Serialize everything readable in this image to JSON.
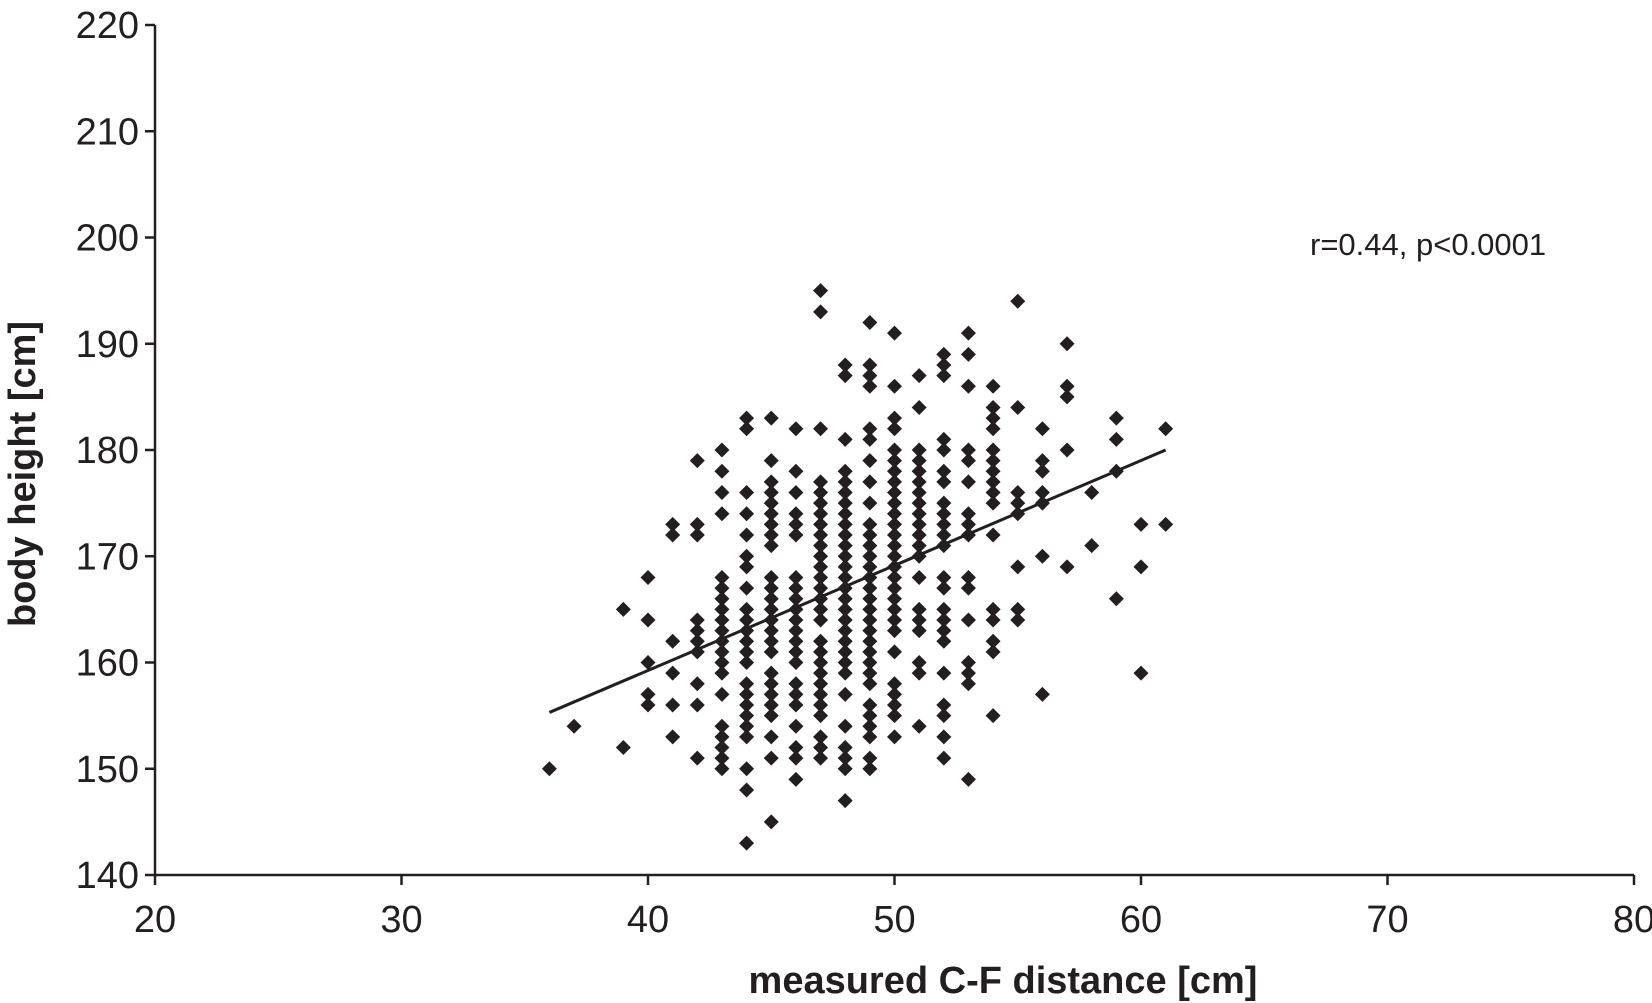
{
  "chart_data": {
    "type": "scatter",
    "xlabel": "measured C-F distance [cm]",
    "ylabel": "body height [cm]",
    "xlim": [
      20,
      80
    ],
    "ylim": [
      140,
      220
    ],
    "xticks": [
      "20",
      "30",
      "40",
      "50",
      "60",
      "70",
      "80"
    ],
    "yticks": [
      "140",
      "150",
      "160",
      "170",
      "180",
      "190",
      "200",
      "210",
      "220"
    ],
    "annotation": "r=0.44, p<0.0001",
    "grid": false,
    "marker": "diamond",
    "colors": {
      "axis": "#231f20",
      "marker": "#231f20",
      "line": "#231f20"
    },
    "regression_line": {
      "x": [
        36,
        61
      ],
      "y": [
        155.3,
        180.0
      ]
    },
    "points": [
      [
        36,
        150
      ],
      [
        37,
        154
      ],
      [
        39,
        152
      ],
      [
        39,
        165
      ],
      [
        40,
        168
      ],
      [
        40,
        164
      ],
      [
        40,
        160
      ],
      [
        40,
        157
      ],
      [
        40,
        156
      ],
      [
        41,
        173
      ],
      [
        41,
        172
      ],
      [
        41,
        162
      ],
      [
        41,
        159
      ],
      [
        41,
        156
      ],
      [
        41,
        153
      ],
      [
        42,
        179
      ],
      [
        42,
        173
      ],
      [
        42,
        172
      ],
      [
        42,
        164
      ],
      [
        42,
        163
      ],
      [
        42,
        162
      ],
      [
        42,
        161
      ],
      [
        42,
        158
      ],
      [
        42,
        156
      ],
      [
        42,
        151
      ],
      [
        43,
        180
      ],
      [
        43,
        178
      ],
      [
        43,
        176
      ],
      [
        43,
        174
      ],
      [
        43,
        168
      ],
      [
        43,
        167
      ],
      [
        43,
        166
      ],
      [
        43,
        165
      ],
      [
        43,
        164
      ],
      [
        43,
        163
      ],
      [
        43,
        162
      ],
      [
        43,
        161
      ],
      [
        43,
        160
      ],
      [
        43,
        159
      ],
      [
        43,
        157
      ],
      [
        43,
        154
      ],
      [
        43,
        153
      ],
      [
        43,
        152
      ],
      [
        43,
        151
      ],
      [
        43,
        150
      ],
      [
        44,
        183
      ],
      [
        44,
        182
      ],
      [
        44,
        176
      ],
      [
        44,
        174
      ],
      [
        44,
        172
      ],
      [
        44,
        170
      ],
      [
        44,
        169
      ],
      [
        44,
        167
      ],
      [
        44,
        165
      ],
      [
        44,
        164
      ],
      [
        44,
        163
      ],
      [
        44,
        162
      ],
      [
        44,
        161
      ],
      [
        44,
        160
      ],
      [
        44,
        158
      ],
      [
        44,
        157
      ],
      [
        44,
        156
      ],
      [
        44,
        155
      ],
      [
        44,
        154
      ],
      [
        44,
        153
      ],
      [
        44,
        150
      ],
      [
        44,
        148
      ],
      [
        44,
        143
      ],
      [
        45,
        183
      ],
      [
        45,
        179
      ],
      [
        45,
        177
      ],
      [
        45,
        176
      ],
      [
        45,
        175
      ],
      [
        45,
        174
      ],
      [
        45,
        173
      ],
      [
        45,
        172
      ],
      [
        45,
        171
      ],
      [
        45,
        168
      ],
      [
        45,
        167
      ],
      [
        45,
        166
      ],
      [
        45,
        165
      ],
      [
        45,
        164
      ],
      [
        45,
        163
      ],
      [
        45,
        162
      ],
      [
        45,
        161
      ],
      [
        45,
        159
      ],
      [
        45,
        158
      ],
      [
        45,
        157
      ],
      [
        45,
        156
      ],
      [
        45,
        155
      ],
      [
        45,
        153
      ],
      [
        45,
        151
      ],
      [
        45,
        145
      ],
      [
        46,
        182
      ],
      [
        46,
        178
      ],
      [
        46,
        176
      ],
      [
        46,
        174
      ],
      [
        46,
        173
      ],
      [
        46,
        172
      ],
      [
        46,
        168
      ],
      [
        46,
        167
      ],
      [
        46,
        166
      ],
      [
        46,
        165
      ],
      [
        46,
        164
      ],
      [
        46,
        163
      ],
      [
        46,
        162
      ],
      [
        46,
        161
      ],
      [
        46,
        160
      ],
      [
        46,
        158
      ],
      [
        46,
        157
      ],
      [
        46,
        156
      ],
      [
        46,
        154
      ],
      [
        46,
        152
      ],
      [
        46,
        151
      ],
      [
        46,
        149
      ],
      [
        47,
        195
      ],
      [
        47,
        193
      ],
      [
        47,
        182
      ],
      [
        47,
        177
      ],
      [
        47,
        176
      ],
      [
        47,
        175
      ],
      [
        47,
        174
      ],
      [
        47,
        173
      ],
      [
        47,
        172
      ],
      [
        47,
        171
      ],
      [
        47,
        170
      ],
      [
        47,
        169
      ],
      [
        47,
        168
      ],
      [
        47,
        167
      ],
      [
        47,
        166
      ],
      [
        47,
        165
      ],
      [
        47,
        164
      ],
      [
        47,
        162
      ],
      [
        47,
        161
      ],
      [
        47,
        160
      ],
      [
        47,
        159
      ],
      [
        47,
        158
      ],
      [
        47,
        157
      ],
      [
        47,
        156
      ],
      [
        47,
        155
      ],
      [
        47,
        153
      ],
      [
        47,
        152
      ],
      [
        47,
        151
      ],
      [
        48,
        188
      ],
      [
        48,
        187
      ],
      [
        48,
        181
      ],
      [
        48,
        178
      ],
      [
        48,
        177
      ],
      [
        48,
        176
      ],
      [
        48,
        175
      ],
      [
        48,
        174
      ],
      [
        48,
        173
      ],
      [
        48,
        172
      ],
      [
        48,
        171
      ],
      [
        48,
        170
      ],
      [
        48,
        169
      ],
      [
        48,
        168
      ],
      [
        48,
        167
      ],
      [
        48,
        166
      ],
      [
        48,
        165
      ],
      [
        48,
        164
      ],
      [
        48,
        163
      ],
      [
        48,
        162
      ],
      [
        48,
        161
      ],
      [
        48,
        160
      ],
      [
        48,
        159
      ],
      [
        48,
        157
      ],
      [
        48,
        154
      ],
      [
        48,
        152
      ],
      [
        48,
        151
      ],
      [
        48,
        150
      ],
      [
        48,
        147
      ],
      [
        49,
        192
      ],
      [
        49,
        188
      ],
      [
        49,
        187
      ],
      [
        49,
        186
      ],
      [
        49,
        182
      ],
      [
        49,
        181
      ],
      [
        49,
        179
      ],
      [
        49,
        177
      ],
      [
        49,
        175
      ],
      [
        49,
        173
      ],
      [
        49,
        172
      ],
      [
        49,
        171
      ],
      [
        49,
        170
      ],
      [
        49,
        169
      ],
      [
        49,
        168
      ],
      [
        49,
        167
      ],
      [
        49,
        166
      ],
      [
        49,
        165
      ],
      [
        49,
        164
      ],
      [
        49,
        163
      ],
      [
        49,
        162
      ],
      [
        49,
        161
      ],
      [
        49,
        160
      ],
      [
        49,
        159
      ],
      [
        49,
        158
      ],
      [
        49,
        156
      ],
      [
        49,
        155
      ],
      [
        49,
        154
      ],
      [
        49,
        153
      ],
      [
        49,
        151
      ],
      [
        49,
        150
      ],
      [
        50,
        191
      ],
      [
        50,
        186
      ],
      [
        50,
        183
      ],
      [
        50,
        182
      ],
      [
        50,
        180
      ],
      [
        50,
        179
      ],
      [
        50,
        178
      ],
      [
        50,
        177
      ],
      [
        50,
        176
      ],
      [
        50,
        175
      ],
      [
        50,
        174
      ],
      [
        50,
        173
      ],
      [
        50,
        172
      ],
      [
        50,
        171
      ],
      [
        50,
        170
      ],
      [
        50,
        169
      ],
      [
        50,
        168
      ],
      [
        50,
        167
      ],
      [
        50,
        166
      ],
      [
        50,
        165
      ],
      [
        50,
        164
      ],
      [
        50,
        163
      ],
      [
        50,
        161
      ],
      [
        50,
        158
      ],
      [
        50,
        157
      ],
      [
        50,
        156
      ],
      [
        50,
        155
      ],
      [
        50,
        153
      ],
      [
        51,
        187
      ],
      [
        51,
        184
      ],
      [
        51,
        180
      ],
      [
        51,
        179
      ],
      [
        51,
        178
      ],
      [
        51,
        177
      ],
      [
        51,
        176
      ],
      [
        51,
        175
      ],
      [
        51,
        174
      ],
      [
        51,
        173
      ],
      [
        51,
        172
      ],
      [
        51,
        171
      ],
      [
        51,
        170
      ],
      [
        51,
        168
      ],
      [
        51,
        165
      ],
      [
        51,
        164
      ],
      [
        51,
        163
      ],
      [
        51,
        160
      ],
      [
        51,
        159
      ],
      [
        51,
        154
      ],
      [
        52,
        189
      ],
      [
        52,
        188
      ],
      [
        52,
        187
      ],
      [
        52,
        181
      ],
      [
        52,
        180
      ],
      [
        52,
        178
      ],
      [
        52,
        177
      ],
      [
        52,
        175
      ],
      [
        52,
        174
      ],
      [
        52,
        173
      ],
      [
        52,
        172
      ],
      [
        52,
        171
      ],
      [
        52,
        168
      ],
      [
        52,
        167
      ],
      [
        52,
        165
      ],
      [
        52,
        164
      ],
      [
        52,
        163
      ],
      [
        52,
        162
      ],
      [
        52,
        159
      ],
      [
        52,
        156
      ],
      [
        52,
        155
      ],
      [
        52,
        153
      ],
      [
        52,
        151
      ],
      [
        53,
        191
      ],
      [
        53,
        189
      ],
      [
        53,
        186
      ],
      [
        53,
        180
      ],
      [
        53,
        179
      ],
      [
        53,
        177
      ],
      [
        53,
        174
      ],
      [
        53,
        173
      ],
      [
        53,
        172
      ],
      [
        53,
        168
      ],
      [
        53,
        167
      ],
      [
        53,
        164
      ],
      [
        53,
        160
      ],
      [
        53,
        159
      ],
      [
        53,
        158
      ],
      [
        53,
        149
      ],
      [
        54,
        186
      ],
      [
        54,
        184
      ],
      [
        54,
        183
      ],
      [
        54,
        182
      ],
      [
        54,
        180
      ],
      [
        54,
        179
      ],
      [
        54,
        178
      ],
      [
        54,
        177
      ],
      [
        54,
        176
      ],
      [
        54,
        175
      ],
      [
        54,
        172
      ],
      [
        54,
        165
      ],
      [
        54,
        164
      ],
      [
        54,
        162
      ],
      [
        54,
        161
      ],
      [
        54,
        155
      ],
      [
        55,
        194
      ],
      [
        55,
        184
      ],
      [
        55,
        176
      ],
      [
        55,
        175
      ],
      [
        55,
        174
      ],
      [
        55,
        169
      ],
      [
        55,
        165
      ],
      [
        55,
        164
      ],
      [
        56,
        182
      ],
      [
        56,
        179
      ],
      [
        56,
        178
      ],
      [
        56,
        176
      ],
      [
        56,
        175
      ],
      [
        56,
        170
      ],
      [
        56,
        157
      ],
      [
        57,
        190
      ],
      [
        57,
        186
      ],
      [
        57,
        185
      ],
      [
        57,
        180
      ],
      [
        57,
        169
      ],
      [
        58,
        176
      ],
      [
        58,
        171
      ],
      [
        59,
        183
      ],
      [
        59,
        181
      ],
      [
        59,
        178
      ],
      [
        59,
        166
      ],
      [
        60,
        173
      ],
      [
        60,
        169
      ],
      [
        60,
        159
      ],
      [
        61,
        182
      ],
      [
        61,
        173
      ]
    ]
  }
}
